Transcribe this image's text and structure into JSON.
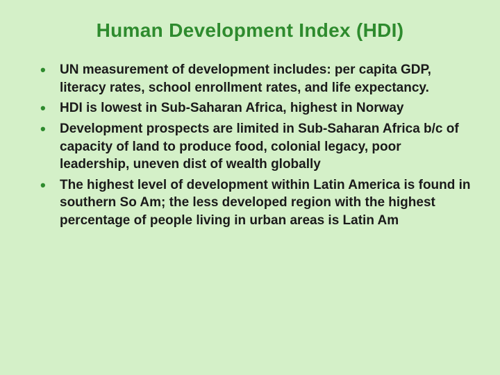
{
  "slide": {
    "title": "Human Development Index (HDI)",
    "title_color": "#2e8b2e",
    "title_fontsize": 28,
    "background_color": "#d4f0c8",
    "bullet_color": "#2e8b2e",
    "text_color": "#1a1a1a",
    "text_fontsize": 19,
    "bullets": [
      "UN measurement of development includes: per capita GDP, literacy rates, school enrollment rates, and life expectancy.",
      "HDI is lowest in Sub-Saharan Africa, highest in Norway",
      "Development prospects are limited in Sub-Saharan Africa b/c of capacity of land to produce food, colonial legacy, poor leadership, uneven dist of wealth globally",
      "The highest level of development within Latin America is found in southern So Am; the less developed region with the highest percentage of people living in urban areas is Latin Am"
    ]
  }
}
